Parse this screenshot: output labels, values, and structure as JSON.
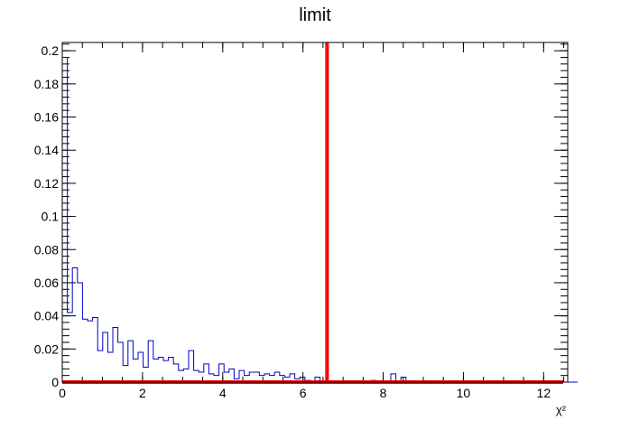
{
  "chart_data": {
    "type": "histogram",
    "title": "limit",
    "xlabel": "χ²",
    "ylabel": "",
    "xlim": [
      0,
      12.6
    ],
    "ylim": [
      0,
      0.205
    ],
    "grid": false,
    "legend": "none",
    "x_ticks": [
      0,
      2,
      4,
      6,
      8,
      10,
      12
    ],
    "x_tick_labels": [
      "0",
      "2",
      "4",
      "6",
      "8",
      "10",
      "12"
    ],
    "y_ticks": [
      0,
      0.02,
      0.04,
      0.06,
      0.08,
      0.1,
      0.12,
      0.14,
      0.16,
      0.18,
      0.2
    ],
    "y_tick_labels": [
      "0",
      "0.02",
      "0.04",
      "0.06",
      "0.08",
      "0.1",
      "0.12",
      "0.14",
      "0.16",
      "0.18",
      "0.2"
    ],
    "bin_width": 0.126,
    "bin_values": [
      0.196,
      0.042,
      0.069,
      0.06,
      0.038,
      0.037,
      0.039,
      0.019,
      0.03,
      0.018,
      0.033,
      0.024,
      0.01,
      0.025,
      0.014,
      0.018,
      0.009,
      0.025,
      0.014,
      0.015,
      0.013,
      0.015,
      0.011,
      0.007,
      0.008,
      0.019,
      0.007,
      0.006,
      0.011,
      0.005,
      0.004,
      0.011,
      0.006,
      0.008,
      0.002,
      0.007,
      0.004,
      0.006,
      0.006,
      0.004,
      0.005,
      0.004,
      0.006,
      0.004,
      0.003,
      0.005,
      0.002,
      0.003,
      0.001,
      0,
      0.003,
      0,
      0,
      0,
      0,
      0,
      0,
      0,
      0,
      0,
      0,
      0.001,
      0,
      0,
      0,
      0.005,
      0,
      0.003,
      0,
      0,
      0,
      0,
      0,
      0,
      0,
      0,
      0,
      0,
      0,
      0,
      0,
      0,
      0,
      0,
      0,
      0,
      0,
      0,
      0,
      0,
      0,
      0,
      0,
      0,
      0,
      0,
      0,
      0,
      0,
      0,
      0,
      0
    ],
    "series_color": "#0000cc",
    "limit_line": {
      "x": 6.6,
      "color": "#ff0000"
    },
    "baseline_line": {
      "y": 0,
      "x_range": [
        0,
        12.6
      ],
      "color": "#ff0000"
    }
  }
}
